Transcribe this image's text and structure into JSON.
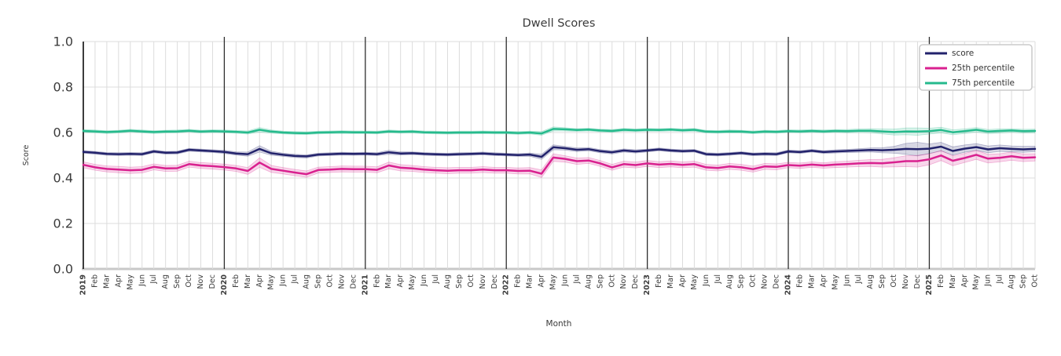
{
  "chart_data": {
    "type": "line",
    "title": "Dwell Scores",
    "xlabel": "Month",
    "ylabel": "Score",
    "ylim": [
      0.0,
      1.0
    ],
    "yticks": [
      0.0,
      0.2,
      0.4,
      0.6,
      0.8,
      1.0
    ],
    "ytick_labels": [
      "0.0",
      "0.2",
      "0.4",
      "0.6",
      "0.8",
      "1.0"
    ],
    "grid": true,
    "legend_position": "upper right",
    "year_gridline_indices": [
      12,
      24,
      36,
      48,
      60,
      72
    ],
    "x_labels": [
      "2019",
      "Feb",
      "Mar",
      "Apr",
      "May",
      "Jun",
      "Jul",
      "Aug",
      "Sep",
      "Oct",
      "Nov",
      "Dec",
      "2020",
      "Feb",
      "Mar",
      "Apr",
      "May",
      "Jun",
      "Jul",
      "Aug",
      "Sep",
      "Oct",
      "Nov",
      "Dec",
      "2021",
      "Feb",
      "Mar",
      "Apr",
      "May",
      "Jun",
      "Jul",
      "Aug",
      "Sep",
      "Oct",
      "Nov",
      "Dec",
      "2022",
      "Feb",
      "Mar",
      "Apr",
      "May",
      "Jun",
      "Jul",
      "Aug",
      "Sep",
      "Oct",
      "Nov",
      "Dec",
      "2023",
      "Feb",
      "Mar",
      "Apr",
      "May",
      "Jun",
      "Jul",
      "Aug",
      "Sep",
      "Oct",
      "Nov",
      "Dec",
      "2024",
      "Feb",
      "Mar",
      "Apr",
      "May",
      "Jun",
      "Jul",
      "Aug",
      "Sep",
      "Oct",
      "Nov",
      "Dec",
      "2025",
      "Feb",
      "Mar",
      "Apr",
      "May",
      "Jun",
      "Jul",
      "Aug",
      "Sep",
      "Oct"
    ],
    "series": [
      {
        "name": "score",
        "color": "#22226b",
        "values": [
          0.515,
          0.511,
          0.506,
          0.505,
          0.506,
          0.505,
          0.517,
          0.511,
          0.512,
          0.524,
          0.521,
          0.518,
          0.515,
          0.508,
          0.505,
          0.528,
          0.509,
          0.502,
          0.497,
          0.495,
          0.503,
          0.505,
          0.507,
          0.506,
          0.507,
          0.505,
          0.513,
          0.508,
          0.509,
          0.506,
          0.504,
          0.503,
          0.505,
          0.506,
          0.508,
          0.505,
          0.503,
          0.501,
          0.503,
          0.493,
          0.535,
          0.531,
          0.524,
          0.527,
          0.518,
          0.513,
          0.521,
          0.517,
          0.521,
          0.526,
          0.521,
          0.518,
          0.52,
          0.505,
          0.503,
          0.506,
          0.51,
          0.504,
          0.506,
          0.505,
          0.517,
          0.514,
          0.52,
          0.514,
          0.517,
          0.519,
          0.521,
          0.523,
          0.522,
          0.524,
          0.528,
          0.527,
          0.529,
          0.538,
          0.519,
          0.529,
          0.536,
          0.526,
          0.531,
          0.528,
          0.526,
          0.528
        ],
        "band_halfwidth": [
          0.006,
          0.006,
          0.006,
          0.006,
          0.006,
          0.006,
          0.006,
          0.006,
          0.006,
          0.006,
          0.006,
          0.006,
          0.007,
          0.007,
          0.009,
          0.014,
          0.009,
          0.007,
          0.007,
          0.007,
          0.006,
          0.006,
          0.006,
          0.006,
          0.006,
          0.006,
          0.009,
          0.007,
          0.006,
          0.006,
          0.006,
          0.006,
          0.006,
          0.006,
          0.006,
          0.006,
          0.006,
          0.006,
          0.007,
          0.011,
          0.011,
          0.008,
          0.008,
          0.007,
          0.007,
          0.007,
          0.007,
          0.007,
          0.006,
          0.006,
          0.006,
          0.006,
          0.006,
          0.006,
          0.006,
          0.006,
          0.006,
          0.006,
          0.006,
          0.006,
          0.006,
          0.006,
          0.006,
          0.006,
          0.007,
          0.007,
          0.008,
          0.009,
          0.011,
          0.015,
          0.024,
          0.03,
          0.021,
          0.019,
          0.018,
          0.016,
          0.015,
          0.015,
          0.014,
          0.013,
          0.013,
          0.012
        ]
      },
      {
        "name": "25th percentile",
        "color": "#d9218f",
        "values": [
          0.458,
          0.447,
          0.44,
          0.437,
          0.434,
          0.436,
          0.449,
          0.442,
          0.443,
          0.461,
          0.455,
          0.452,
          0.448,
          0.442,
          0.431,
          0.468,
          0.44,
          0.432,
          0.424,
          0.417,
          0.435,
          0.437,
          0.44,
          0.439,
          0.439,
          0.436,
          0.455,
          0.445,
          0.442,
          0.437,
          0.434,
          0.432,
          0.434,
          0.434,
          0.437,
          0.434,
          0.434,
          0.431,
          0.432,
          0.419,
          0.49,
          0.484,
          0.474,
          0.477,
          0.464,
          0.447,
          0.461,
          0.457,
          0.464,
          0.459,
          0.462,
          0.458,
          0.461,
          0.447,
          0.444,
          0.451,
          0.447,
          0.439,
          0.451,
          0.449,
          0.457,
          0.454,
          0.459,
          0.455,
          0.459,
          0.461,
          0.464,
          0.466,
          0.465,
          0.469,
          0.474,
          0.474,
          0.482,
          0.499,
          0.476,
          0.488,
          0.502,
          0.485,
          0.489,
          0.496,
          0.489,
          0.491
        ],
        "band_halfwidth": [
          0.013,
          0.013,
          0.013,
          0.014,
          0.014,
          0.014,
          0.013,
          0.013,
          0.013,
          0.013,
          0.013,
          0.013,
          0.013,
          0.013,
          0.015,
          0.021,
          0.015,
          0.014,
          0.014,
          0.014,
          0.013,
          0.013,
          0.013,
          0.013,
          0.013,
          0.013,
          0.015,
          0.014,
          0.013,
          0.013,
          0.013,
          0.013,
          0.013,
          0.013,
          0.013,
          0.013,
          0.013,
          0.013,
          0.014,
          0.017,
          0.017,
          0.014,
          0.014,
          0.013,
          0.013,
          0.013,
          0.013,
          0.013,
          0.013,
          0.013,
          0.013,
          0.013,
          0.013,
          0.013,
          0.013,
          0.013,
          0.013,
          0.013,
          0.013,
          0.013,
          0.012,
          0.012,
          0.012,
          0.012,
          0.013,
          0.013,
          0.014,
          0.015,
          0.017,
          0.02,
          0.024,
          0.026,
          0.024,
          0.022,
          0.022,
          0.02,
          0.02,
          0.019,
          0.018,
          0.018,
          0.017,
          0.016
        ]
      },
      {
        "name": "75th percentile",
        "color": "#25ba8c",
        "values": [
          0.607,
          0.605,
          0.602,
          0.604,
          0.608,
          0.605,
          0.602,
          0.604,
          0.605,
          0.608,
          0.604,
          0.606,
          0.605,
          0.603,
          0.6,
          0.612,
          0.604,
          0.6,
          0.598,
          0.597,
          0.6,
          0.601,
          0.602,
          0.601,
          0.601,
          0.6,
          0.605,
          0.603,
          0.604,
          0.601,
          0.6,
          0.599,
          0.6,
          0.6,
          0.601,
          0.6,
          0.6,
          0.598,
          0.6,
          0.596,
          0.616,
          0.614,
          0.611,
          0.613,
          0.609,
          0.607,
          0.612,
          0.61,
          0.612,
          0.611,
          0.613,
          0.61,
          0.612,
          0.604,
          0.603,
          0.605,
          0.604,
          0.601,
          0.604,
          0.603,
          0.606,
          0.605,
          0.607,
          0.605,
          0.607,
          0.606,
          0.608,
          0.608,
          0.605,
          0.602,
          0.605,
          0.604,
          0.606,
          0.611,
          0.601,
          0.606,
          0.612,
          0.604,
          0.607,
          0.609,
          0.606,
          0.607
        ],
        "band_halfwidth": [
          0.006,
          0.006,
          0.006,
          0.006,
          0.006,
          0.006,
          0.006,
          0.006,
          0.006,
          0.006,
          0.006,
          0.006,
          0.006,
          0.006,
          0.007,
          0.01,
          0.007,
          0.006,
          0.006,
          0.006,
          0.006,
          0.006,
          0.006,
          0.006,
          0.006,
          0.006,
          0.006,
          0.006,
          0.006,
          0.006,
          0.006,
          0.006,
          0.006,
          0.006,
          0.006,
          0.006,
          0.006,
          0.006,
          0.006,
          0.008,
          0.009,
          0.007,
          0.006,
          0.006,
          0.006,
          0.006,
          0.006,
          0.006,
          0.006,
          0.006,
          0.006,
          0.006,
          0.006,
          0.006,
          0.006,
          0.006,
          0.006,
          0.006,
          0.006,
          0.006,
          0.006,
          0.006,
          0.006,
          0.006,
          0.006,
          0.007,
          0.008,
          0.009,
          0.011,
          0.013,
          0.015,
          0.016,
          0.013,
          0.012,
          0.011,
          0.01,
          0.01,
          0.009,
          0.009,
          0.008,
          0.008,
          0.008
        ]
      }
    ],
    "colors": {
      "grid": "#dcdcdc",
      "year_line": "#2e2e2e",
      "spine": "#262626",
      "baseline": "#c8c8c8",
      "text": "#3c3c3c",
      "legend_border": "#cccccc"
    }
  }
}
